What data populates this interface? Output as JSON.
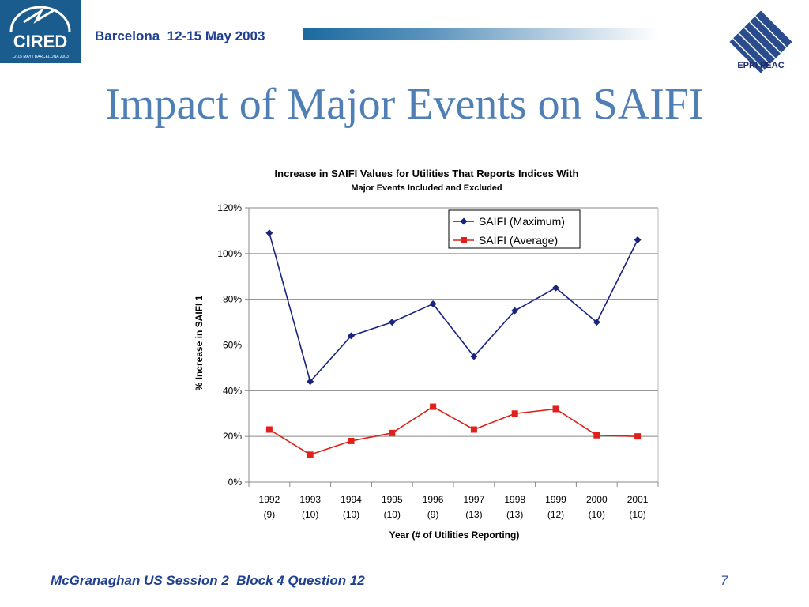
{
  "header": {
    "logo_left_text": "CIRED",
    "logo_left_subtext": "12-15 MAY | BARCELONA 2003",
    "event_line": "Barcelona  12-15 May 2003",
    "logo_right_text": "EPRI PEAC"
  },
  "slide": {
    "title": "Impact of Major Events on SAIFI"
  },
  "footer": {
    "text": "McGranaghan US Session 2  Block 4 Question 12",
    "page_number": "7"
  },
  "chart_data": {
    "type": "line",
    "title": "Increase in SAIFI Values for Utilities That Reports Indices With",
    "subtitle": "Major Events Included and Excluded",
    "xlabel": "Year (# of Utilities Reporting)",
    "ylabel": "% Increase in SAIFI  1",
    "categories": [
      "1992",
      "1993",
      "1994",
      "1995",
      "1996",
      "1997",
      "1998",
      "1999",
      "2000",
      "2001"
    ],
    "category_sublabels": [
      "(9)",
      "(10)",
      "(10)",
      "(10)",
      "(9)",
      "(13)",
      "(13)",
      "(12)",
      "(10)",
      "(10)"
    ],
    "ylim": [
      0,
      1.2
    ],
    "yticks": [
      0,
      0.2,
      0.4,
      0.6,
      0.8,
      1.0,
      1.2
    ],
    "ytick_labels": [
      "0%",
      "20%",
      "40%",
      "60%",
      "80%",
      "100%",
      "120%"
    ],
    "grid": true,
    "legend_position": "top-right",
    "series": [
      {
        "name": "SAIFI (Maximum)",
        "color": "#1a237e",
        "marker": "diamond",
        "values": [
          1.09,
          0.44,
          0.64,
          0.7,
          0.78,
          0.55,
          0.75,
          0.85,
          0.7,
          1.06
        ]
      },
      {
        "name": "SAIFI (Average)",
        "color": "#e0201b",
        "marker": "square",
        "values": [
          0.23,
          0.12,
          0.18,
          0.215,
          0.33,
          0.23,
          0.3,
          0.32,
          0.205,
          0.2
        ]
      }
    ]
  }
}
